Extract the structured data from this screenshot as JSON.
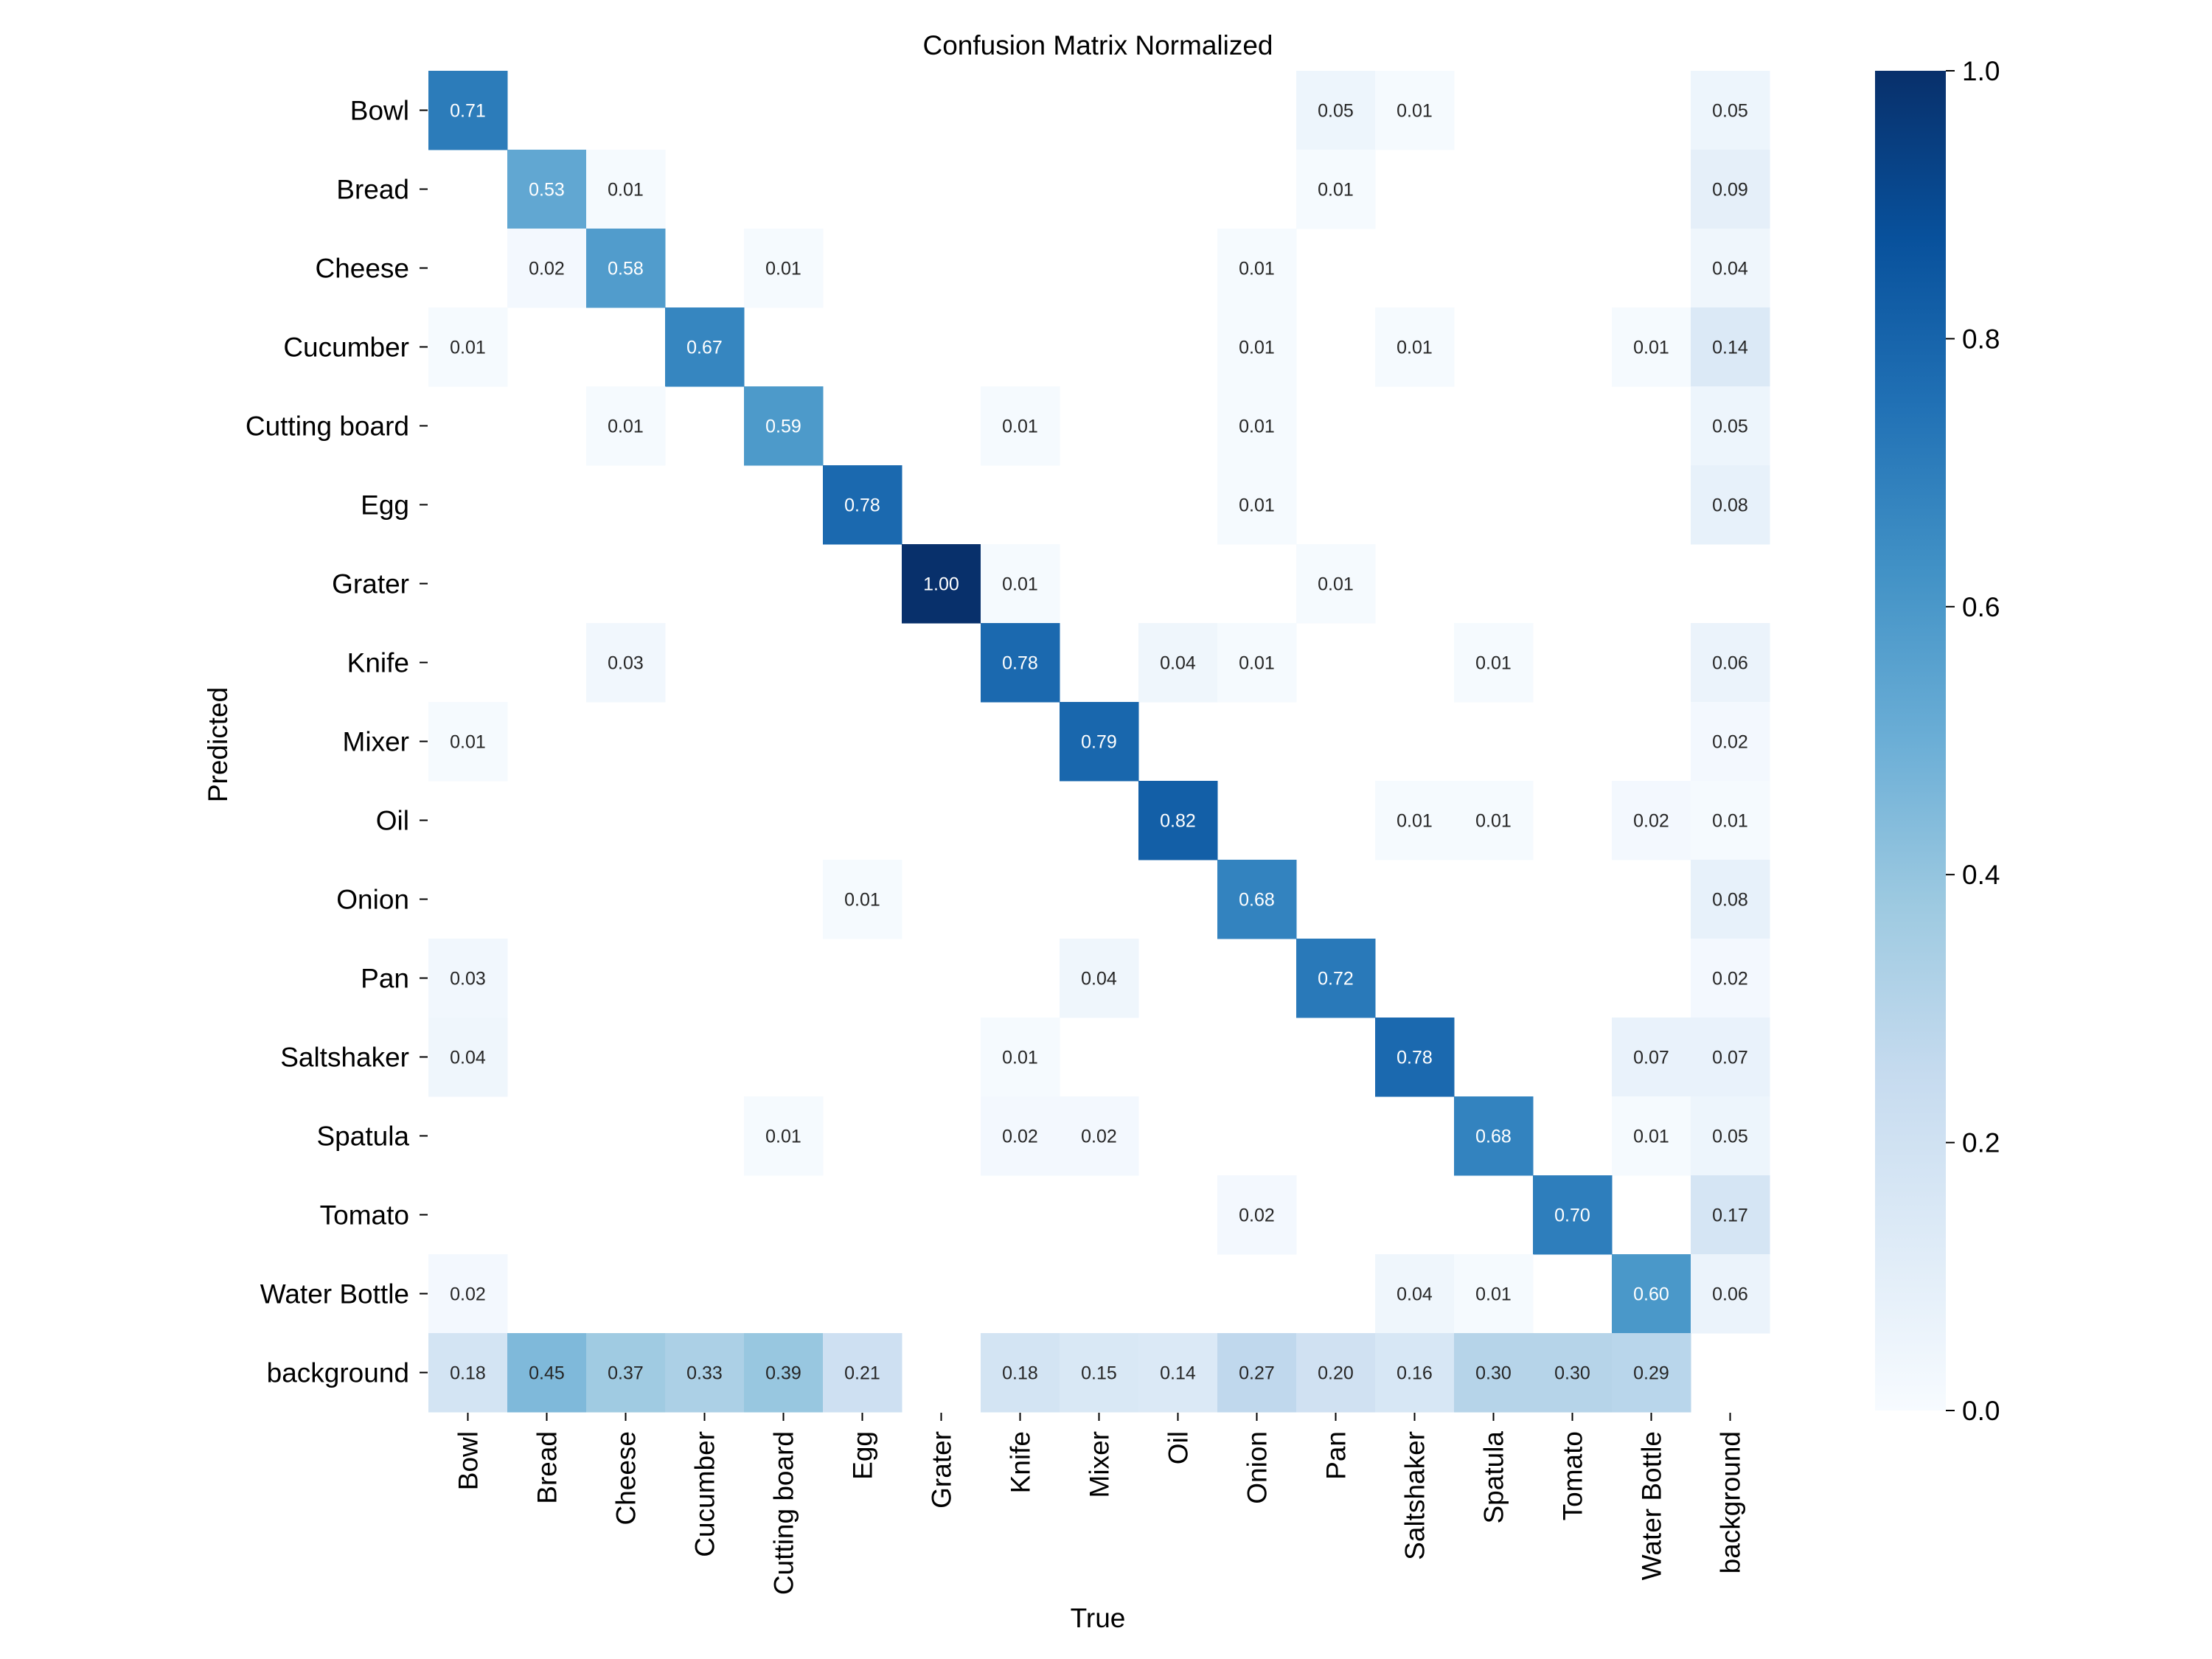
{
  "chart_data": {
    "type": "heatmap",
    "title": "Confusion Matrix Normalized",
    "xlabel": "True",
    "ylabel": "Predicted",
    "colormap": "Blues",
    "color_low": "#f7fbff",
    "color_high": "#08306b",
    "vmin": 0.0,
    "vmax": 1.0,
    "colorbar_ticks": [
      "0.0",
      "0.2",
      "0.4",
      "0.6",
      "0.8",
      "1.0"
    ],
    "x_categories": [
      "Bowl",
      "Bread",
      "Cheese",
      "Cucumber",
      "Cutting board",
      "Egg",
      "Grater",
      "Knife",
      "Mixer",
      "Oil",
      "Onion",
      "Pan",
      "Saltshaker",
      "Spatula",
      "Tomato",
      "Water Bottle",
      "background"
    ],
    "y_categories": [
      "Bowl",
      "Bread",
      "Cheese",
      "Cucumber",
      "Cutting board",
      "Egg",
      "Grater",
      "Knife",
      "Mixer",
      "Oil",
      "Onion",
      "Pan",
      "Saltshaker",
      "Spatula",
      "Tomato",
      "Water Bottle",
      "background"
    ],
    "values": [
      [
        0.71,
        null,
        null,
        null,
        null,
        null,
        null,
        null,
        null,
        null,
        null,
        0.05,
        0.01,
        null,
        null,
        null,
        0.05
      ],
      [
        null,
        0.53,
        0.01,
        null,
        null,
        null,
        null,
        null,
        null,
        null,
        null,
        0.01,
        null,
        null,
        null,
        null,
        0.09
      ],
      [
        null,
        0.02,
        0.58,
        null,
        0.01,
        null,
        null,
        null,
        null,
        null,
        0.01,
        null,
        null,
        null,
        null,
        null,
        0.04
      ],
      [
        0.01,
        null,
        null,
        0.67,
        null,
        null,
        null,
        null,
        null,
        null,
        0.01,
        null,
        0.01,
        null,
        null,
        0.01,
        0.14
      ],
      [
        null,
        null,
        0.01,
        null,
        0.59,
        null,
        null,
        0.01,
        null,
        null,
        0.01,
        null,
        null,
        null,
        null,
        null,
        0.05
      ],
      [
        null,
        null,
        null,
        null,
        null,
        0.78,
        null,
        null,
        null,
        null,
        0.01,
        null,
        null,
        null,
        null,
        null,
        0.08
      ],
      [
        null,
        null,
        null,
        null,
        null,
        null,
        1.0,
        0.01,
        null,
        null,
        null,
        0.01,
        null,
        null,
        null,
        null,
        null
      ],
      [
        null,
        null,
        0.03,
        null,
        null,
        null,
        null,
        0.78,
        null,
        0.04,
        0.01,
        null,
        null,
        0.01,
        null,
        null,
        0.06
      ],
      [
        0.01,
        null,
        null,
        null,
        null,
        null,
        null,
        null,
        0.79,
        null,
        null,
        null,
        null,
        null,
        null,
        null,
        0.02
      ],
      [
        null,
        null,
        null,
        null,
        null,
        null,
        null,
        null,
        null,
        0.82,
        null,
        null,
        0.01,
        0.01,
        null,
        0.02,
        0.01
      ],
      [
        null,
        null,
        null,
        null,
        null,
        0.01,
        null,
        null,
        null,
        null,
        0.68,
        null,
        null,
        null,
        null,
        null,
        0.08
      ],
      [
        0.03,
        null,
        null,
        null,
        null,
        null,
        null,
        null,
        0.04,
        null,
        null,
        0.72,
        null,
        null,
        null,
        null,
        0.02
      ],
      [
        0.04,
        null,
        null,
        null,
        null,
        null,
        null,
        0.01,
        null,
        null,
        null,
        null,
        0.78,
        null,
        null,
        0.07,
        0.07
      ],
      [
        null,
        null,
        null,
        null,
        0.01,
        null,
        null,
        0.02,
        0.02,
        null,
        null,
        null,
        null,
        0.68,
        null,
        0.01,
        0.05
      ],
      [
        null,
        null,
        null,
        null,
        null,
        null,
        null,
        null,
        null,
        null,
        0.02,
        null,
        null,
        null,
        0.7,
        null,
        0.17
      ],
      [
        0.02,
        null,
        null,
        null,
        null,
        null,
        null,
        null,
        null,
        null,
        null,
        null,
        0.04,
        0.01,
        null,
        0.6,
        0.06
      ],
      [
        0.18,
        0.45,
        0.37,
        0.33,
        0.39,
        0.21,
        null,
        0.18,
        0.15,
        0.14,
        0.27,
        0.2,
        0.16,
        0.3,
        0.3,
        0.29,
        null
      ]
    ]
  }
}
